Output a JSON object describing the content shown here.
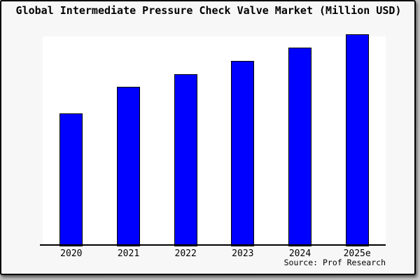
{
  "chart": {
    "title": "Global Intermediate Pressure Check Valve Market (Million USD)",
    "source_label": "Source: Prof Research"
  },
  "colors": {
    "bar_fill": "#0000ff",
    "bar_border": "#000000",
    "axis_line": "#000000",
    "frame_border": "#000000",
    "outer_background": "#f7f7f7",
    "plot_background": "#ffffff",
    "title_text": "#000000",
    "shadow": "#8f8f8f"
  },
  "chart_data": {
    "type": "bar",
    "title": "Global Intermediate Pressure Check Valve Market (Million USD)",
    "categories": [
      "2020",
      "2021",
      "2022",
      "2023",
      "2024",
      "2025e"
    ],
    "values": [
      100,
      120,
      130,
      140,
      150,
      160
    ],
    "units": "relative index (no y-axis scale or value labels displayed; 2020 = 100)",
    "xlabel": "",
    "ylabel": "",
    "y_axis_shown": false,
    "grid": false,
    "legend_position": "none",
    "bar_color": "#0000ff",
    "source": "Source: Prof Research"
  }
}
